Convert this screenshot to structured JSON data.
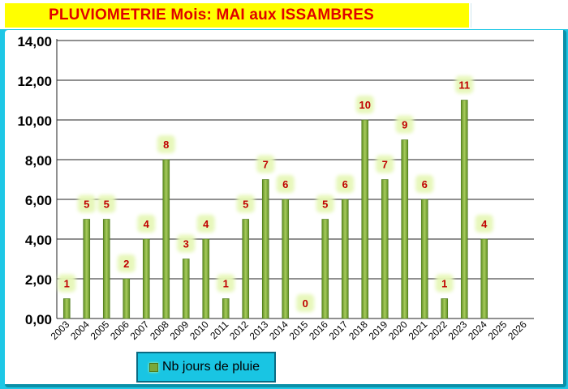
{
  "header": {
    "title": "PLUVIOMETRIE Mois: MAI aux ISSAMBRES"
  },
  "colors": {
    "background": "#1ec7e6",
    "title_band": "#ffff00",
    "title_text": "#e00000",
    "bar": "#7aa83a",
    "data_label_text": "#c00000",
    "data_label_glow": "#e6f7b8",
    "legend_box": "#19c5e3"
  },
  "chart_data": {
    "type": "bar",
    "title": "PLUVIOMETRIE Mois: MAI aux ISSAMBRES",
    "categories": [
      "2003",
      "2004",
      "2005",
      "2006",
      "2007",
      "2008",
      "2009",
      "2010",
      "2011",
      "2012",
      "2013",
      "2014",
      "2015",
      "2016",
      "2017",
      "2018",
      "2019",
      "2020",
      "2021",
      "2022",
      "2023",
      "2024",
      "2025",
      "2026"
    ],
    "series": [
      {
        "name": "Nb jours de pluie",
        "values": [
          1,
          5,
          5,
          2,
          4,
          8,
          3,
          4,
          1,
          5,
          7,
          6,
          0,
          5,
          6,
          10,
          7,
          9,
          6,
          1,
          11,
          4,
          null,
          null
        ],
        "labels": [
          "1",
          "5",
          "5",
          "2",
          "4",
          "8",
          "3",
          "4",
          "1",
          "5",
          "7",
          "6",
          "0",
          "5",
          "6",
          "10",
          "7",
          "9",
          "6",
          "1",
          "11",
          "4",
          "",
          ""
        ]
      }
    ],
    "ylim": [
      0,
      14
    ],
    "yticks": [
      "0,00",
      "2,00",
      "4,00",
      "6,00",
      "8,00",
      "10,00",
      "12,00",
      "14,00"
    ],
    "grid": true,
    "legend": "bottom-left"
  }
}
